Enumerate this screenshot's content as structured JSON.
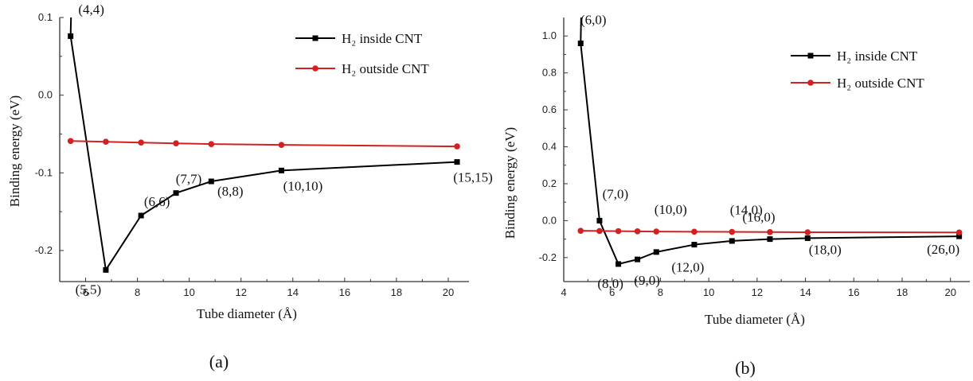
{
  "chart_data": [
    {
      "type": "line",
      "caption": "(a)",
      "xlabel": "Tube diameter (Å)",
      "ylabel": "Binding energy (eV)",
      "xlim": [
        5,
        20.8
      ],
      "ylim": [
        -0.24,
        0.1
      ],
      "xticks": [
        6,
        8,
        10,
        12,
        14,
        16,
        18,
        20
      ],
      "yticks": [
        0.1,
        0.0,
        -0.1,
        -0.2
      ],
      "ytick_labels": [
        "0.1",
        "0.0",
        "-0.1",
        "-0.2"
      ],
      "grid": false,
      "legend_position": "top-right",
      "series": [
        {
          "name": "H₂ inside CNT",
          "color": "#000000",
          "marker": "square",
          "x": [
            5.42,
            6.78,
            8.14,
            9.49,
            10.85,
            13.56,
            20.34
          ],
          "y": [
            0.076,
            -0.225,
            -0.155,
            -0.126,
            -0.111,
            -0.097,
            -0.086
          ]
        },
        {
          "name": "H₂ outside CNT",
          "color": "#d42020",
          "marker": "circle",
          "x": [
            5.42,
            6.78,
            8.14,
            9.49,
            10.85,
            13.56,
            20.34
          ],
          "y": [
            -0.059,
            -0.06,
            -0.061,
            -0.062,
            -0.063,
            -0.064,
            -0.066
          ]
        }
      ],
      "annotations": [
        {
          "text": "(4,4)",
          "x": 5.42,
          "y": 0.076
        },
        {
          "text": "(5,5)",
          "x": 6.78,
          "y": -0.225
        },
        {
          "text": "(6,6)",
          "x": 8.14,
          "y": -0.155
        },
        {
          "text": "(7,7)",
          "x": 9.49,
          "y": -0.126
        },
        {
          "text": "(8,8)",
          "x": 10.85,
          "y": -0.111
        },
        {
          "text": "(10,10)",
          "x": 13.56,
          "y": -0.097
        },
        {
          "text": "(15,15)",
          "x": 20.34,
          "y": -0.086
        }
      ]
    },
    {
      "type": "line",
      "caption": "(b)",
      "xlabel": "Tube diameter (Å)",
      "ylabel": "Binding energy (eV)",
      "xlim": [
        4,
        20.8
      ],
      "ylim": [
        -0.33,
        1.1
      ],
      "xticks": [
        4,
        6,
        8,
        10,
        12,
        14,
        16,
        18,
        20
      ],
      "yticks": [
        1.0,
        0.8,
        0.6,
        0.4,
        0.2,
        0.0,
        -0.2
      ],
      "ytick_labels": [
        "1.0",
        "0.8",
        "0.6",
        "0.4",
        "0.2",
        "0.0",
        "-0.2"
      ],
      "grid": false,
      "legend_position": "top-right",
      "series": [
        {
          "name": "H₂ inside CNT",
          "color": "#000000",
          "marker": "square",
          "x": [
            4.7,
            5.48,
            6.26,
            7.05,
            7.83,
            9.4,
            10.96,
            12.53,
            14.09,
            20.36
          ],
          "y": [
            0.96,
            0.0,
            -0.235,
            -0.21,
            -0.17,
            -0.13,
            -0.11,
            -0.1,
            -0.095,
            -0.085
          ]
        },
        {
          "name": "H₂ outside CNT",
          "color": "#d42020",
          "marker": "circle",
          "x": [
            4.7,
            5.48,
            6.26,
            7.05,
            7.83,
            9.4,
            10.96,
            12.53,
            14.09,
            20.36
          ],
          "y": [
            -0.055,
            -0.056,
            -0.057,
            -0.058,
            -0.059,
            -0.06,
            -0.061,
            -0.062,
            -0.063,
            -0.064
          ]
        }
      ],
      "annotations": [
        {
          "text": "(6,0)",
          "x": 4.7,
          "y": 0.96
        },
        {
          "text": "(7,0)",
          "x": 5.48,
          "y": 0.0
        },
        {
          "text": "(8,0)",
          "x": 6.26,
          "y": -0.235
        },
        {
          "text": "(9,0)",
          "x": 7.05,
          "y": -0.21
        },
        {
          "text": "(10,0)",
          "x": 7.83,
          "y": -0.059
        },
        {
          "text": "(12,0)",
          "x": 9.4,
          "y": -0.13
        },
        {
          "text": "(14,0)",
          "x": 10.96,
          "y": -0.061
        },
        {
          "text": "(16,0)",
          "x": 12.53,
          "y": -0.1
        },
        {
          "text": "(18,0)",
          "x": 14.09,
          "y": -0.095
        },
        {
          "text": "(26,0)",
          "x": 20.36,
          "y": -0.085
        }
      ]
    }
  ]
}
